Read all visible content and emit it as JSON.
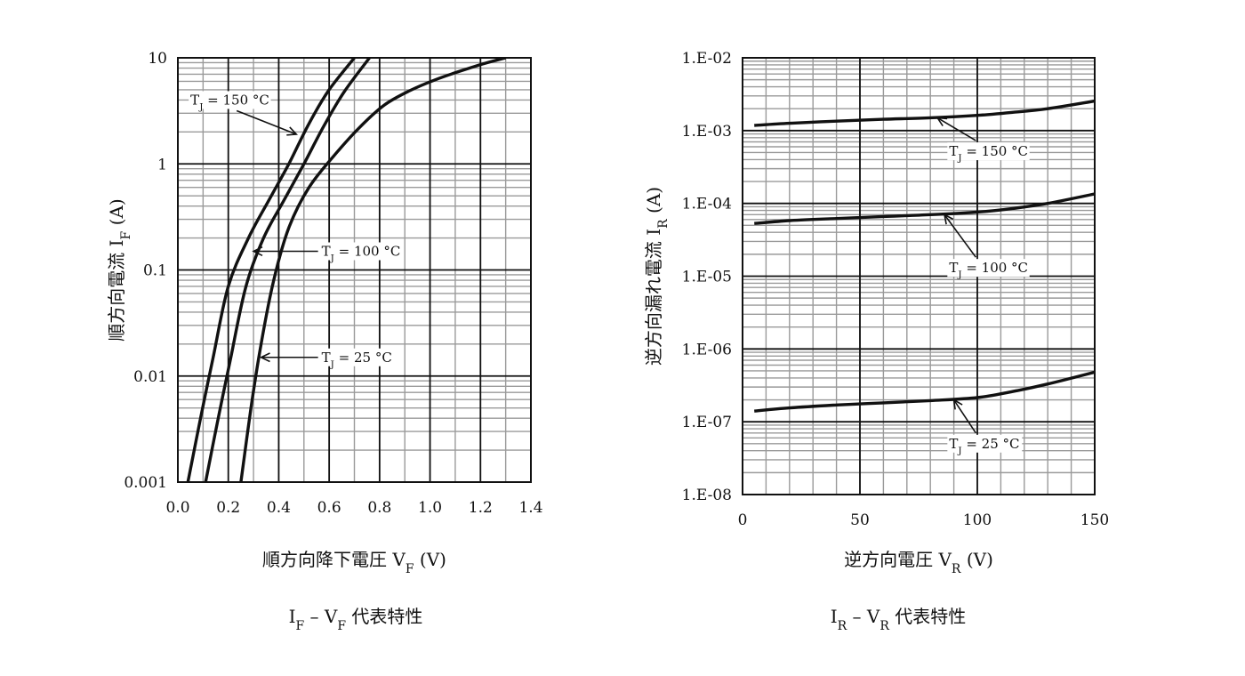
{
  "chart_data": [
    {
      "type": "line",
      "x_scale": "linear",
      "y_scale": "log",
      "xlim": [
        0,
        1.4
      ],
      "ylim": [
        0.001,
        10
      ],
      "x_ticks": [
        "0.0",
        "0.2",
        "0.4",
        "0.6",
        "0.8",
        "1.0",
        "1.2",
        "1.4"
      ],
      "y_ticks": [
        "10",
        "1",
        "0.1",
        "0.01",
        "0.001"
      ],
      "xlabel": {
        "main": "順方向降下電圧 V",
        "sub": "F",
        "unit": " (V)"
      },
      "ylabel": {
        "main": "順方向電流 I",
        "sub": "F",
        "unit": " (A)"
      },
      "caption": {
        "a": "I",
        "a_sub": "F",
        "mid": " – V",
        "b_sub": "F",
        "rest": " 代表特性"
      },
      "grid": true,
      "series": [
        {
          "name": "TJ = 150 °C",
          "label": {
            "pre": "T",
            "sub": "J",
            "post": " = 150 °C"
          },
          "x": [
            0.04,
            0.09,
            0.14,
            0.2,
            0.28,
            0.36,
            0.44,
            0.52,
            0.6,
            0.7
          ],
          "y": [
            0.001,
            0.004,
            0.015,
            0.07,
            0.2,
            0.45,
            1.0,
            2.4,
            5.0,
            10
          ]
        },
        {
          "name": "TJ = 100 °C",
          "label": {
            "pre": "T",
            "sub": "J",
            "post": " = 100 °C"
          },
          "x": [
            0.11,
            0.16,
            0.21,
            0.27,
            0.34,
            0.42,
            0.5,
            0.58,
            0.66,
            0.76
          ],
          "y": [
            0.001,
            0.004,
            0.015,
            0.07,
            0.2,
            0.45,
            1.0,
            2.3,
            4.8,
            10
          ]
        },
        {
          "name": "TJ = 25 °C",
          "label": {
            "pre": "T",
            "sub": "J",
            "post": " = 25 °C"
          },
          "x": [
            0.25,
            0.29,
            0.33,
            0.38,
            0.44,
            0.52,
            0.62,
            0.72,
            0.82,
            0.92,
            1.02,
            1.12,
            1.22,
            1.3
          ],
          "y": [
            0.001,
            0.005,
            0.02,
            0.08,
            0.25,
            0.6,
            1.2,
            2.2,
            3.6,
            4.9,
            6.2,
            7.5,
            8.9,
            10
          ]
        }
      ],
      "annotations": [
        {
          "series": 0,
          "text_x": 0.05,
          "text_y": 4.0,
          "arrow_x": 0.47,
          "arrow_y": 1.9
        },
        {
          "series": 1,
          "text_x": 0.57,
          "text_y": 0.15,
          "arrow_x": 0.3,
          "arrow_y": 0.15
        },
        {
          "series": 2,
          "text_x": 0.57,
          "text_y": 0.015,
          "arrow_x": 0.33,
          "arrow_y": 0.015
        }
      ]
    },
    {
      "type": "line",
      "x_scale": "linear",
      "y_scale": "log",
      "xlim": [
        0,
        150
      ],
      "ylim": [
        1e-08,
        0.01
      ],
      "x_ticks": [
        "0",
        "50",
        "100",
        "150"
      ],
      "y_ticks": [
        "1.E-02",
        "1.E-03",
        "1.E-04",
        "1.E-05",
        "1.E-06",
        "1.E-07",
        "1.E-08"
      ],
      "xlabel": {
        "main": "逆方向電圧 V",
        "sub": "R",
        "unit": " (V)"
      },
      "ylabel": {
        "main": "逆方向漏れ電流 I",
        "sub": "R",
        "unit": " (A)"
      },
      "caption": {
        "a": "I",
        "a_sub": "R",
        "mid": " – V",
        "b_sub": "R",
        "rest": " 代表特性"
      },
      "grid": true,
      "series": [
        {
          "name": "TJ = 150 °C",
          "label": {
            "pre": "T",
            "sub": "J",
            "post": " = 150 °C"
          },
          "x": [
            5,
            20,
            40,
            60,
            80,
            100,
            115,
            130,
            150
          ],
          "y": [
            0.00118,
            0.00126,
            0.00135,
            0.00143,
            0.0015,
            0.00162,
            0.00178,
            0.002,
            0.00255
          ]
        },
        {
          "name": "TJ = 100 °C",
          "label": {
            "pre": "T",
            "sub": "J",
            "post": " = 100 °C"
          },
          "x": [
            5,
            20,
            40,
            60,
            80,
            100,
            115,
            130,
            150
          ],
          "y": [
            5.3e-05,
            5.8e-05,
            6.2e-05,
            6.6e-05,
            7e-05,
            7.6e-05,
            8.5e-05,
            0.0001,
            0.000135
          ]
        },
        {
          "name": "TJ = 25 °C",
          "label": {
            "pre": "T",
            "sub": "J",
            "post": " = 25 °C"
          },
          "x": [
            5,
            20,
            40,
            60,
            80,
            100,
            115,
            130,
            150
          ],
          "y": [
            1.4e-07,
            1.55e-07,
            1.7e-07,
            1.82e-07,
            1.95e-07,
            2.15e-07,
            2.6e-07,
            3.3e-07,
            4.8e-07
          ]
        }
      ],
      "annotations": [
        {
          "series": 0,
          "text_x": 88,
          "text_y": 0.00052,
          "arrow_x": 83,
          "arrow_y": 0.0015
        },
        {
          "series": 1,
          "text_x": 88,
          "text_y": 1.3e-05,
          "arrow_x": 86,
          "arrow_y": 7e-05
        },
        {
          "series": 2,
          "text_x": 88,
          "text_y": 5e-08,
          "arrow_x": 90,
          "arrow_y": 2e-07
        }
      ]
    }
  ]
}
